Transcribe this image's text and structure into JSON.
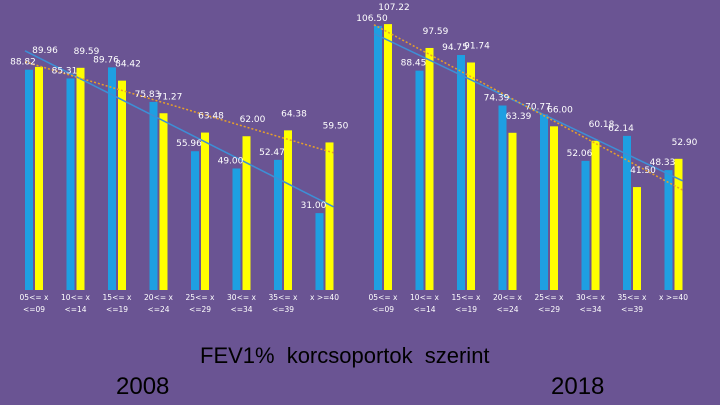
{
  "title": "FEV1%  korcsoportok szerint",
  "colors": {
    "background": "#6a5493",
    "bar_blue": "#1e9fe2",
    "bar_yellow": "#ffff00",
    "trend_blue": "#3d8fd6",
    "trend_orange": "#e8a02a",
    "label_text": "#ffffff"
  },
  "chart_data": [
    {
      "type": "bar",
      "panel_label": "2008",
      "categories": [
        "05<= x <=09",
        "10<= x <=14",
        "15<= x <=19",
        "20<= x <=24",
        "25<= x <=29",
        "30<= x <=34",
        "35<= x <=39",
        "x >=40"
      ],
      "series": [
        {
          "color": "#1e9fe2",
          "values": [
            88.82,
            85.31,
            89.76,
            75.83,
            55.96,
            49.0,
            52.47,
            31.0
          ]
        },
        {
          "color": "#ffff00",
          "values": [
            89.96,
            89.59,
            84.42,
            71.27,
            63.48,
            62.0,
            64.38,
            59.5
          ]
        }
      ],
      "ylim": [
        0,
        115
      ],
      "trendlines": true
    },
    {
      "type": "bar",
      "panel_label": "2018",
      "categories": [
        "05<= x <=09",
        "10<= x <=14",
        "15<= x <=19",
        "20<= x <=24",
        "25<= x <=29",
        "30<= x <=34",
        "35<= x <=39",
        "x >=40"
      ],
      "series": [
        {
          "color": "#1e9fe2",
          "values": [
            106.5,
            88.45,
            94.75,
            74.39,
            70.77,
            52.06,
            62.14,
            48.33
          ]
        },
        {
          "color": "#ffff00",
          "values": [
            107.22,
            97.59,
            91.74,
            63.39,
            66.0,
            60.18,
            41.5,
            52.9
          ]
        }
      ],
      "ylim": [
        0,
        115
      ],
      "trendlines": true
    }
  ]
}
